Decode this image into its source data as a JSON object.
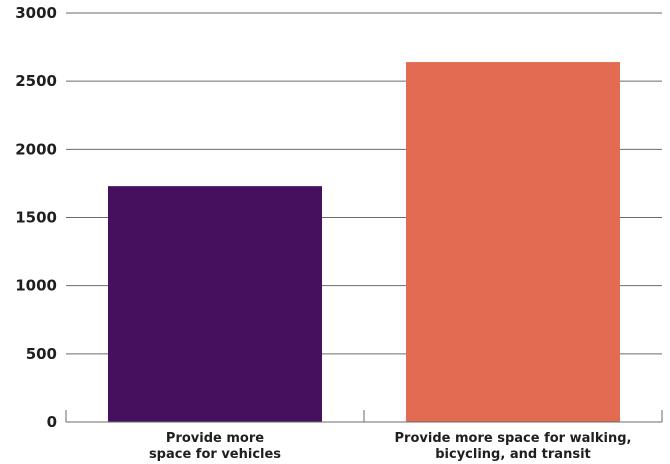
{
  "chart_data": {
    "type": "bar",
    "categories": [
      [
        "Provide more",
        "space for vehicles"
      ],
      [
        "Provide more space for walking,",
        "bicycling, and transit"
      ]
    ],
    "values": [
      1730,
      2640
    ],
    "colors": [
      "#46105f",
      "#e36b51"
    ],
    "ylim": [
      0,
      3000
    ],
    "yticks": [
      "0",
      "500",
      "1000",
      "1500",
      "2000",
      "2500",
      "3000"
    ],
    "title": "",
    "xlabel": "",
    "ylabel": "",
    "grid": true
  }
}
